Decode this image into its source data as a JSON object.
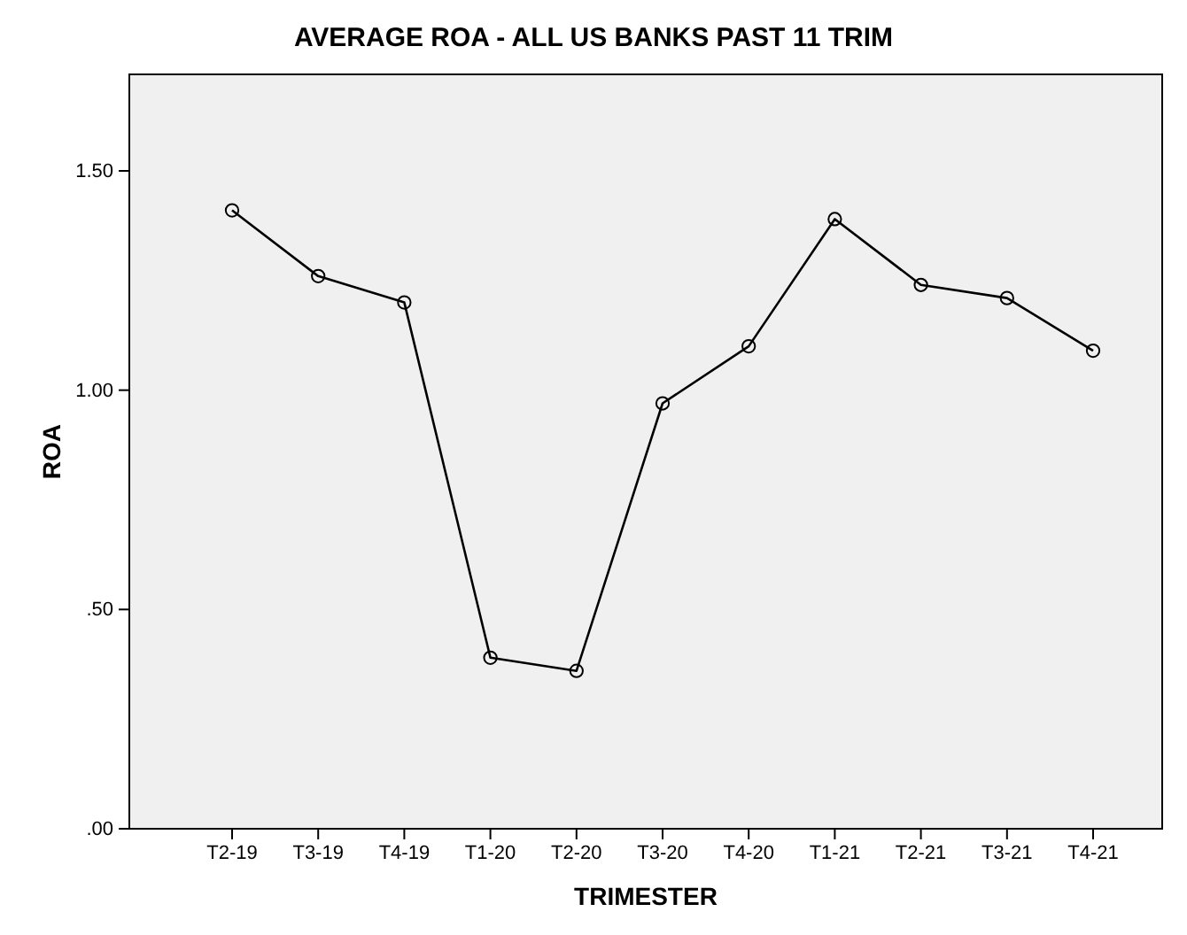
{
  "chart_data": {
    "type": "line",
    "title": "AVERAGE ROA - ALL US BANKS PAST 11 TRIM",
    "xlabel": "TRIMESTER",
    "ylabel": "ROA",
    "categories": [
      "T2-19",
      "T3-19",
      "T4-19",
      "T1-20",
      "T2-20",
      "T3-20",
      "T4-20",
      "T1-21",
      "T2-21",
      "T3-21",
      "T4-21"
    ],
    "series": [
      {
        "color": "#000000",
        "values": [
          1.41,
          1.26,
          1.2,
          0.39,
          0.36,
          0.97,
          1.1,
          1.39,
          1.24,
          1.21,
          1.09
        ]
      }
    ],
    "ylim": [
      0,
      1.72
    ],
    "yticks": [
      {
        "value": 0,
        "label": ".00"
      },
      {
        "value": 0.5,
        "label": ".50"
      },
      {
        "value": 1,
        "label": "1.00"
      },
      {
        "value": 1.5,
        "label": "1.50"
      }
    ],
    "marker": "circle",
    "line_style": "solid",
    "grid": false
  }
}
